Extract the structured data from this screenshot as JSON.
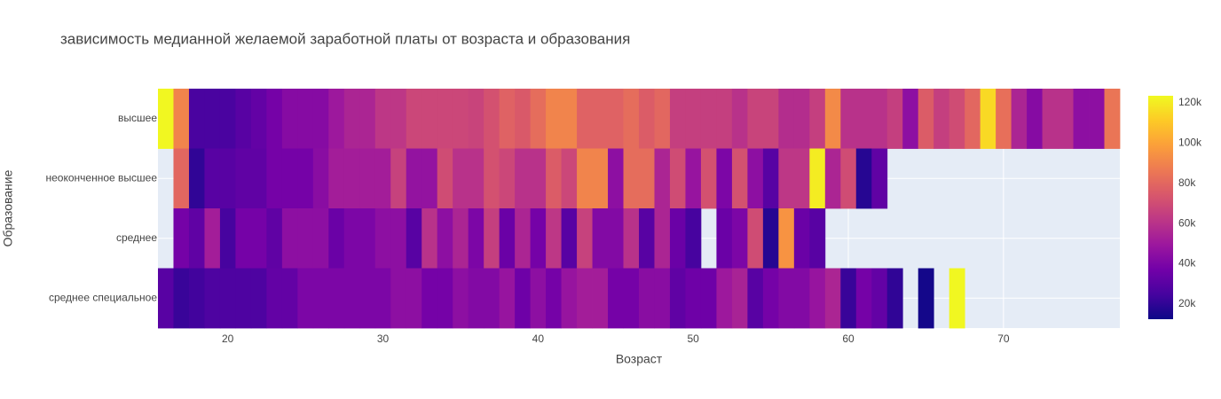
{
  "chart_data": {
    "type": "heatmap",
    "title": "зависимость медианной желаемой заработной платы от возраста и образования",
    "x_label": "Возраст",
    "y_label": "Образование",
    "x": [
      16,
      17,
      18,
      19,
      20,
      21,
      22,
      23,
      24,
      25,
      26,
      27,
      28,
      29,
      30,
      31,
      32,
      33,
      34,
      35,
      36,
      37,
      38,
      39,
      40,
      41,
      42,
      43,
      44,
      45,
      46,
      47,
      48,
      49,
      50,
      51,
      52,
      53,
      54,
      55,
      56,
      57,
      58,
      59,
      60,
      61,
      62,
      63,
      64,
      65,
      66,
      67,
      68,
      69,
      70,
      71,
      72,
      73,
      74,
      75,
      76,
      77
    ],
    "y": [
      "высшее",
      "неоконченное высшее",
      "среднее",
      "среднее специальное"
    ],
    "z": [
      [
        123000,
        90000,
        26000,
        26000,
        26000,
        30000,
        33000,
        38000,
        43000,
        43000,
        43000,
        50000,
        55000,
        55000,
        62000,
        62000,
        68000,
        68000,
        68000,
        68000,
        67000,
        72000,
        78000,
        75000,
        82000,
        90000,
        90000,
        78000,
        78000,
        78000,
        82000,
        76000,
        80000,
        65000,
        65000,
        65000,
        65000,
        60000,
        67000,
        67000,
        58000,
        58000,
        65000,
        92000,
        60000,
        60000,
        60000,
        65000,
        45000,
        76000,
        65000,
        70000,
        80000,
        115000,
        83000,
        55000,
        43000,
        60000,
        60000,
        45000,
        45000,
        85000
      ],
      [
        null,
        80000,
        20000,
        30000,
        30000,
        32000,
        32000,
        38000,
        38000,
        38000,
        44000,
        52000,
        52000,
        52000,
        52000,
        66000,
        47000,
        47000,
        70000,
        60000,
        60000,
        72000,
        68000,
        60000,
        60000,
        76000,
        68000,
        90000,
        90000,
        45000,
        82000,
        82000,
        55000,
        70000,
        48000,
        72000,
        40000,
        72000,
        45000,
        30000,
        62000,
        62000,
        120000,
        55000,
        70000,
        18000,
        32000,
        null,
        null,
        null,
        null,
        null,
        null,
        null,
        null,
        null,
        null,
        null,
        null,
        null,
        null,
        null
      ],
      [
        null,
        38000,
        32000,
        52000,
        25000,
        38000,
        38000,
        32000,
        45000,
        45000,
        45000,
        35000,
        40000,
        40000,
        45000,
        45000,
        30000,
        60000,
        45000,
        55000,
        40000,
        65000,
        35000,
        55000,
        38000,
        62000,
        30000,
        66000,
        42000,
        42000,
        60000,
        30000,
        55000,
        35000,
        25000,
        null,
        35000,
        40000,
        70000,
        18000,
        95000,
        35000,
        30000,
        null,
        null,
        null,
        null,
        null,
        null,
        null,
        null,
        null,
        null,
        null,
        null,
        null,
        null,
        null,
        null,
        null,
        null,
        null
      ],
      [
        30000,
        22000,
        24000,
        27000,
        27000,
        27000,
        27000,
        33000,
        33000,
        40000,
        40000,
        40000,
        40000,
        40000,
        40000,
        45000,
        45000,
        38000,
        38000,
        45000,
        42000,
        42000,
        48000,
        36000,
        45000,
        38000,
        48000,
        52000,
        52000,
        38000,
        38000,
        44000,
        44000,
        32000,
        36000,
        36000,
        50000,
        54000,
        30000,
        38000,
        42000,
        42000,
        48000,
        55000,
        22000,
        38000,
        33000,
        20000,
        null,
        14000,
        null,
        123000,
        null,
        null,
        null,
        null,
        null,
        null,
        null,
        null,
        null,
        null
      ]
    ],
    "xlim": [
      15.5,
      77.5
    ],
    "xticks": [
      20,
      30,
      40,
      50,
      60,
      70
    ],
    "zlim": [
      12500,
      123500
    ],
    "zticks": [
      {
        "value": 20000,
        "label": "20k"
      },
      {
        "value": 40000,
        "label": "40k"
      },
      {
        "value": 60000,
        "label": "60k"
      },
      {
        "value": 80000,
        "label": "80k"
      },
      {
        "value": 100000,
        "label": "100k"
      },
      {
        "value": 120000,
        "label": "120k"
      }
    ],
    "colorscale": [
      "#0d0887",
      "#46039f",
      "#7201a8",
      "#9c179e",
      "#bd3786",
      "#d8576b",
      "#ed7953",
      "#fb9f3a",
      "#fdca26",
      "#f0f921"
    ],
    "grid": true
  }
}
